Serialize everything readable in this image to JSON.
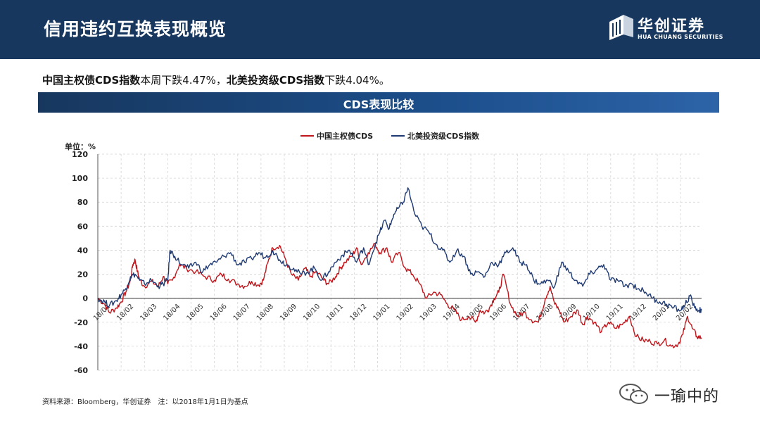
{
  "header": {
    "title": "信用违约互换表现概览",
    "logo": {
      "cn": "华创证券",
      "en": "HUA CHUANG SECURITIES"
    }
  },
  "summary": {
    "part1_bold": "中国主权债CDS指数",
    "part1_text": "本周下跌4.47%，",
    "part2_bold": "北美投资级CDS指数",
    "part2_text": "下跌4.04%。"
  },
  "band": {
    "title": "CDS表现比较"
  },
  "footer": {
    "source": "资料来源：Bloomberg，华创证券　注：以2018年1月1日为基点",
    "watermark": "一瑜中的"
  },
  "colors": {
    "china": "#c0161b",
    "na": "#1f3a73",
    "header": "#17375e"
  },
  "chart_data": {
    "type": "line",
    "ylabel": "单位：%",
    "ylim": [
      -60,
      120
    ],
    "yticks": [
      -60,
      -40,
      -20,
      0,
      20,
      40,
      60,
      80,
      100,
      120
    ],
    "grid": true,
    "legend_position": "top-center",
    "x_labels": [
      "18/01",
      "18/02",
      "18/03",
      "18/04",
      "18/05",
      "18/06",
      "18/07",
      "18/08",
      "18/09",
      "18/10",
      "18/11",
      "18/12",
      "19/01",
      "19/02",
      "19/03",
      "19/04",
      "19/05",
      "19/06",
      "19/07",
      "19/08",
      "19/09",
      "19/10",
      "19/11",
      "19/12",
      "20/01",
      "20/02"
    ],
    "x_range": [
      0,
      25.9
    ],
    "series": [
      {
        "name": "中国主权债CDS",
        "color": "#c0161b",
        "x": [
          0,
          0.3,
          0.5,
          0.8,
          1.0,
          1.2,
          1.4,
          1.5,
          1.6,
          1.7,
          1.8,
          2.0,
          2.3,
          2.6,
          2.8,
          3.0,
          3.2,
          3.5,
          3.8,
          4.2,
          4.6,
          5.0,
          5.3,
          5.6,
          6.0,
          6.3,
          6.6,
          6.9,
          7.1,
          7.3,
          7.5,
          7.8,
          8.0,
          8.3,
          8.6,
          8.9,
          9.1,
          9.4,
          9.7,
          9.9,
          10.2,
          10.4,
          10.6,
          10.9,
          11.1,
          11.3,
          11.6,
          11.9,
          12.1,
          12.4,
          12.6,
          12.9,
          13.2,
          13.5,
          13.8,
          14.1,
          14.4,
          14.7,
          15.0,
          15.3,
          15.6,
          15.9,
          16.2,
          16.4,
          16.6,
          16.8,
          17.0,
          17.2,
          17.4,
          17.7,
          18.0,
          18.3,
          18.6,
          18.9,
          19.2,
          19.4,
          19.6,
          19.8,
          20.0,
          20.3,
          20.6,
          20.8,
          21.0,
          21.3,
          21.6,
          21.9,
          22.2,
          22.5,
          22.8,
          23.1,
          23.4,
          23.7,
          24.0,
          24.3,
          24.6,
          24.9,
          25.1,
          25.3,
          25.5,
          25.7,
          25.9
        ],
        "y": [
          0,
          -5,
          -12,
          -8,
          -3,
          5,
          15,
          28,
          32,
          22,
          15,
          10,
          14,
          10,
          18,
          12,
          15,
          28,
          25,
          22,
          18,
          15,
          20,
          16,
          12,
          10,
          14,
          11,
          15,
          30,
          42,
          44,
          35,
          20,
          15,
          25,
          18,
          22,
          15,
          12,
          18,
          25,
          30,
          35,
          42,
          28,
          38,
          45,
          38,
          42,
          30,
          38,
          25,
          20,
          12,
          0,
          5,
          3,
          -5,
          -10,
          -18,
          -15,
          -20,
          -10,
          -12,
          -8,
          0,
          5,
          20,
          -5,
          -15,
          -12,
          -18,
          -20,
          0,
          10,
          -5,
          -10,
          -20,
          -15,
          -10,
          -22,
          -15,
          -20,
          -28,
          -20,
          -25,
          -22,
          -15,
          -32,
          -35,
          -36,
          -38,
          -35,
          -40,
          -38,
          -30,
          -15,
          -25,
          -32,
          -33
        ]
      },
      {
        "name": "北美投资级CDS指数",
        "color": "#1f3a73",
        "x": [
          0,
          0.3,
          0.5,
          0.8,
          1.0,
          1.2,
          1.4,
          1.6,
          1.8,
          2.0,
          2.3,
          2.6,
          2.8,
          3.0,
          3.1,
          3.3,
          3.6,
          3.9,
          4.2,
          4.5,
          4.8,
          5.1,
          5.4,
          5.7,
          6.0,
          6.3,
          6.6,
          6.9,
          7.2,
          7.5,
          7.8,
          8.1,
          8.4,
          8.7,
          9.0,
          9.3,
          9.6,
          9.9,
          10.2,
          10.5,
          10.8,
          11.1,
          11.4,
          11.6,
          11.9,
          12.1,
          12.3,
          12.5,
          12.7,
          12.9,
          13.1,
          13.3,
          13.6,
          13.9,
          14.2,
          14.5,
          14.8,
          15.1,
          15.4,
          15.7,
          16.0,
          16.3,
          16.6,
          16.9,
          17.2,
          17.5,
          17.8,
          18.1,
          18.4,
          18.7,
          19.0,
          19.3,
          19.6,
          19.9,
          20.2,
          20.5,
          20.8,
          21.1,
          21.4,
          21.7,
          22.0,
          22.3,
          22.6,
          22.9,
          23.2,
          23.5,
          23.8,
          24.1,
          24.4,
          24.7,
          25.0,
          25.2,
          25.4,
          25.6,
          25.8,
          25.9
        ],
        "y": [
          0,
          -3,
          -6,
          -2,
          3,
          8,
          18,
          20,
          15,
          12,
          15,
          10,
          12,
          15,
          40,
          35,
          28,
          25,
          30,
          22,
          28,
          30,
          35,
          38,
          28,
          30,
          33,
          38,
          34,
          40,
          32,
          28,
          25,
          20,
          22,
          25,
          15,
          22,
          30,
          36,
          40,
          30,
          42,
          28,
          45,
          55,
          65,
          58,
          70,
          75,
          80,
          92,
          70,
          60,
          55,
          45,
          40,
          30,
          40,
          35,
          20,
          22,
          18,
          30,
          28,
          38,
          42,
          30,
          28,
          15,
          12,
          15,
          10,
          30,
          22,
          15,
          10,
          20,
          24,
          28,
          15,
          15,
          10,
          12,
          8,
          5,
          0,
          -3,
          -5,
          -8,
          -10,
          -5,
          2,
          -8,
          -10,
          -10
        ]
      }
    ]
  }
}
